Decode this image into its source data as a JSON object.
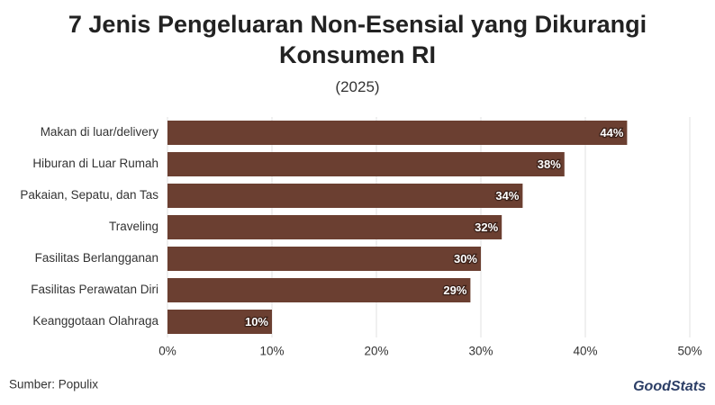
{
  "chart_data": {
    "type": "barh",
    "title": "7 Jenis Pengeluaran Non-Esensial yang Dikurangi Konsumen RI",
    "subtitle": "(2025)",
    "categories": [
      "Makan di luar/delivery",
      "Hiburan di Luar Rumah",
      "Pakaian, Sepatu, dan Tas",
      "Traveling",
      "Fasilitas Berlangganan",
      "Fasilitas Perawatan Diri",
      "Keanggotaan Olahraga"
    ],
    "values": [
      44,
      38,
      34,
      32,
      30,
      29,
      10
    ],
    "value_labels": [
      "44%",
      "38%",
      "34%",
      "32%",
      "30%",
      "29%",
      "10%"
    ],
    "color": "#6b3f31",
    "xlim": [
      0,
      50
    ],
    "xticks": [
      {
        "value": 0,
        "label": "0%"
      },
      {
        "value": 10,
        "label": "10%"
      },
      {
        "value": 20,
        "label": "20%"
      },
      {
        "value": 30,
        "label": "30%"
      },
      {
        "value": 40,
        "label": "40%"
      },
      {
        "value": 50,
        "label": "50%"
      }
    ],
    "grid": true,
    "source": "Sumber: Populix",
    "brand": "GoodStats"
  }
}
